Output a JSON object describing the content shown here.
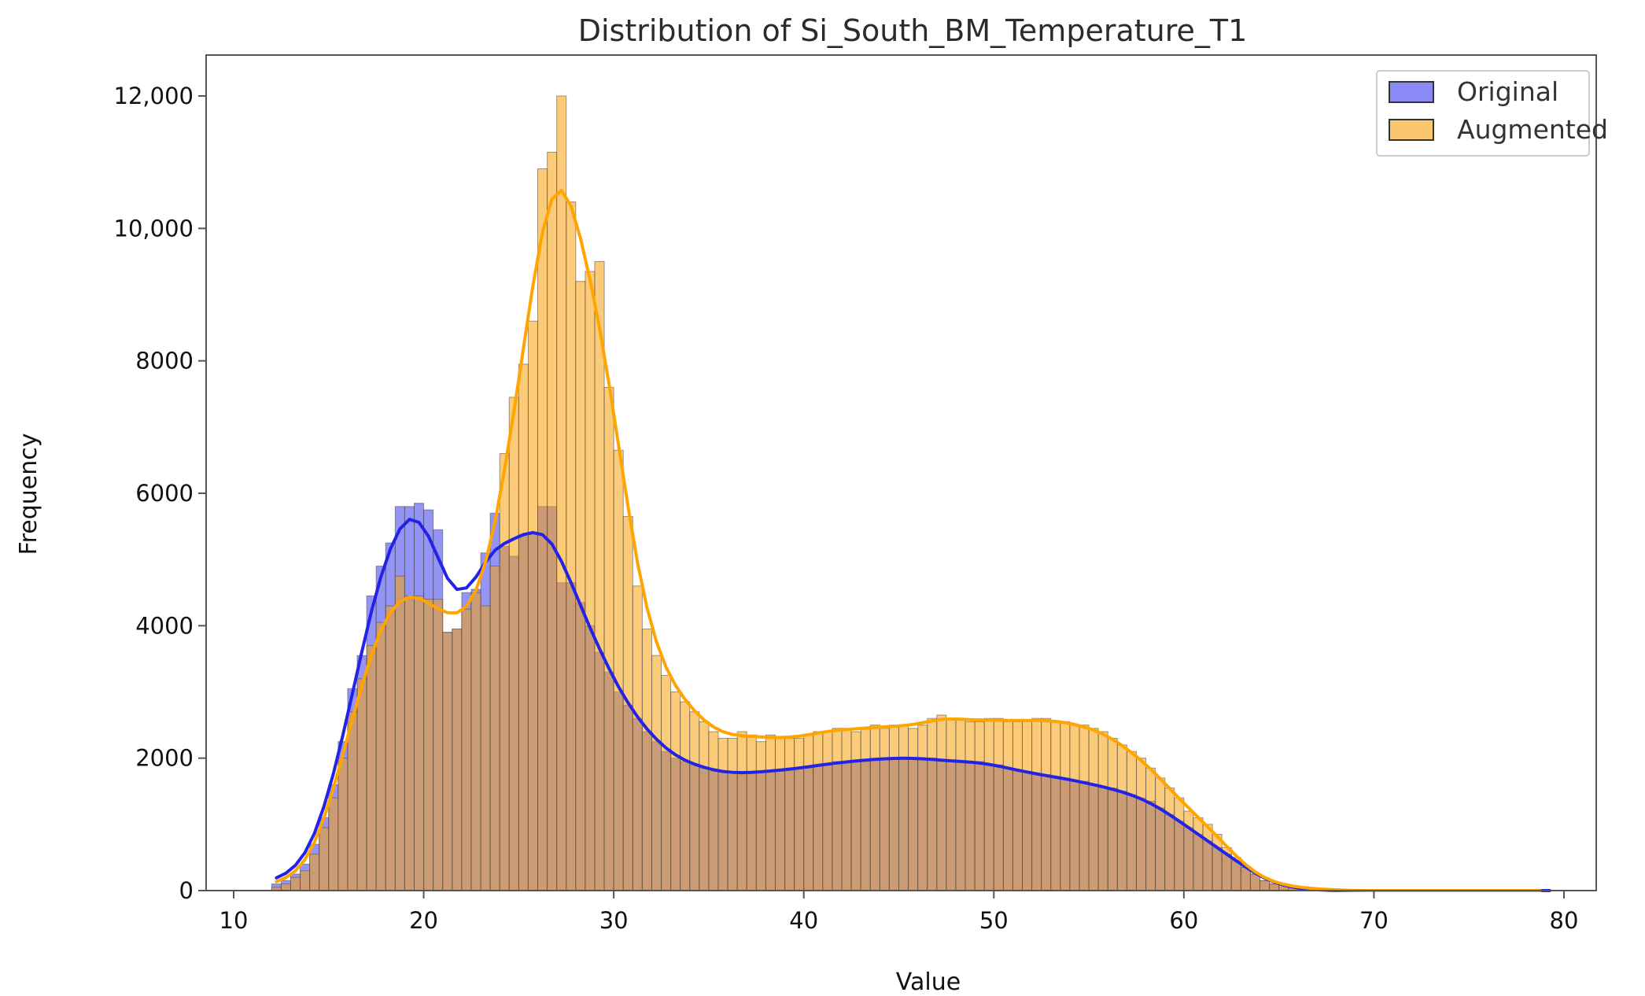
{
  "chart_data": {
    "type": "histogram",
    "title": "Distribution of Si_South_BM_Temperature_T1",
    "xlabel": "Value",
    "ylabel": "Frequency",
    "xlim": [
      10,
      80
    ],
    "ylim": [
      0,
      12000
    ],
    "xticks": [
      10,
      20,
      30,
      40,
      50,
      60,
      70,
      80
    ],
    "xtick_labels": [
      "10",
      "20",
      "30",
      "40",
      "50",
      "60",
      "70",
      "80"
    ],
    "yticks": [
      0,
      2000,
      4000,
      6000,
      8000,
      10000,
      12000
    ],
    "ytick_labels": [
      "0",
      "2000",
      "4000",
      "6000",
      "8000",
      "10,000",
      "12,000"
    ],
    "grid": false,
    "legend_position": "top-right",
    "bin_start": 12,
    "bin_width": 0.5,
    "series": [
      {
        "name": "Original",
        "color": "#3c3cf0",
        "kde_color": "#2323e8",
        "values": [
          100,
          150,
          250,
          400,
          700,
          1100,
          1600,
          2250,
          3050,
          3550,
          4450,
          4900,
          5250,
          5800,
          5800,
          5850,
          5750,
          5450,
          3900,
          3950,
          4500,
          4550,
          5100,
          5700,
          5200,
          5050,
          5350,
          5400,
          5800,
          5800,
          4650,
          4650,
          4350,
          4000,
          3600,
          3300,
          3000,
          2800,
          2600,
          2400,
          2250,
          2100,
          2000,
          1950,
          1900,
          1850,
          1800,
          1800,
          1750,
          1750,
          1800,
          1800,
          1800,
          1800,
          1850,
          1850,
          1850,
          1900,
          1900,
          1950,
          1950,
          1950,
          1950,
          2000,
          2000,
          2000,
          2000,
          2000,
          2000,
          2000,
          1950,
          1950,
          1950,
          1950,
          1950,
          1900,
          1900,
          1850,
          1800,
          1800,
          1750,
          1750,
          1700,
          1700,
          1650,
          1650,
          1600,
          1550,
          1550,
          1500,
          1450,
          1400,
          1350,
          1250,
          1150,
          1050,
          950,
          850,
          750,
          650,
          550,
          450,
          350,
          250,
          150,
          100,
          60,
          40,
          20,
          10,
          5,
          0,
          0,
          0,
          0,
          0,
          0,
          0,
          0,
          0,
          0,
          0,
          0,
          0,
          0,
          0,
          0,
          0,
          0,
          0,
          0,
          0,
          0,
          0,
          0
        ]
      },
      {
        "name": "Augmented",
        "color": "#f8a00c",
        "kde_color": "#ffa500",
        "values": [
          50,
          100,
          200,
          300,
          550,
          950,
          1400,
          2000,
          2700,
          3200,
          3700,
          4050,
          4300,
          4750,
          4450,
          4450,
          4400,
          4400,
          3900,
          3950,
          4250,
          4500,
          4300,
          4900,
          6600,
          7450,
          7950,
          8600,
          10900,
          11150,
          12000,
          10400,
          9200,
          9350,
          9500,
          7600,
          6650,
          5650,
          4600,
          3950,
          3550,
          3250,
          3000,
          2850,
          2700,
          2550,
          2400,
          2300,
          2300,
          2400,
          2350,
          2250,
          2350,
          2300,
          2300,
          2300,
          2350,
          2400,
          2400,
          2450,
          2450,
          2400,
          2450,
          2500,
          2450,
          2500,
          2500,
          2450,
          2500,
          2600,
          2650,
          2600,
          2600,
          2550,
          2550,
          2600,
          2600,
          2550,
          2550,
          2550,
          2600,
          2600,
          2550,
          2550,
          2500,
          2500,
          2450,
          2400,
          2300,
          2200,
          2100,
          2000,
          1850,
          1700,
          1550,
          1400,
          1200,
          1100,
          1000,
          850,
          650,
          500,
          350,
          250,
          150,
          100,
          80,
          60,
          40,
          30,
          20,
          10,
          5,
          0,
          0,
          0,
          0,
          0,
          0,
          0,
          0,
          0,
          0,
          0,
          0,
          0,
          0,
          0,
          0,
          0,
          0,
          0,
          0,
          0
        ]
      }
    ]
  }
}
